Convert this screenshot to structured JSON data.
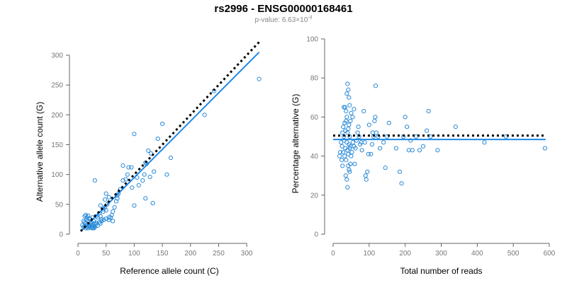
{
  "title": "rs2996 - ENSG00000168461",
  "subtitle": {
    "prefix": "p-value: 6.63×10",
    "exponent": "-4"
  },
  "colors": {
    "points": "#2a8ad8",
    "fit_line": "#1e88e5",
    "reference_line": "#000000",
    "axis": "#666666"
  },
  "chart_data": [
    {
      "type": "scatter",
      "xlabel": "Reference allele count (C)",
      "ylabel": "Alternative allele count (G)",
      "xlim": [
        0,
        325
      ],
      "ylim": [
        0,
        300
      ],
      "x_ticks": [
        0,
        50,
        100,
        150,
        200,
        250,
        300
      ],
      "y_ticks": [
        0,
        50,
        100,
        150,
        200,
        250,
        300
      ],
      "lines": [
        {
          "name": "fit",
          "style": "solid",
          "x": [
            5,
            322
          ],
          "y": [
            5,
            305
          ]
        },
        {
          "name": "expected",
          "style": "dotted",
          "x": [
            5,
            322
          ],
          "y": [
            5,
            322
          ]
        }
      ],
      "points": [
        [
          12,
          30
        ],
        [
          14,
          32
        ],
        [
          16,
          28
        ],
        [
          18,
          31
        ],
        [
          20,
          26
        ],
        [
          10,
          22
        ],
        [
          12,
          20
        ],
        [
          14,
          18
        ],
        [
          15,
          24
        ],
        [
          16,
          16
        ],
        [
          18,
          22
        ],
        [
          20,
          14
        ],
        [
          22,
          18
        ],
        [
          22,
          25
        ],
        [
          24,
          20
        ],
        [
          25,
          12
        ],
        [
          26,
          28
        ],
        [
          27,
          16
        ],
        [
          28,
          22
        ],
        [
          30,
          18
        ],
        [
          8,
          15
        ],
        [
          10,
          12
        ],
        [
          12,
          14
        ],
        [
          14,
          10
        ],
        [
          16,
          12
        ],
        [
          18,
          10
        ],
        [
          20,
          13
        ],
        [
          22,
          11
        ],
        [
          24,
          15
        ],
        [
          26,
          10
        ],
        [
          28,
          13
        ],
        [
          30,
          12
        ],
        [
          32,
          16
        ],
        [
          33,
          19
        ],
        [
          35,
          14
        ],
        [
          28,
          10
        ],
        [
          32,
          30
        ],
        [
          35,
          28
        ],
        [
          38,
          35
        ],
        [
          40,
          30
        ],
        [
          42,
          25
        ],
        [
          45,
          38
        ],
        [
          48,
          45
        ],
        [
          50,
          40
        ],
        [
          52,
          50
        ],
        [
          55,
          62
        ],
        [
          50,
          68
        ],
        [
          48,
          58
        ],
        [
          45,
          42
        ],
        [
          38,
          20
        ],
        [
          40,
          18
        ],
        [
          42,
          22
        ],
        [
          46,
          24
        ],
        [
          50,
          26
        ],
        [
          55,
          24
        ],
        [
          58,
          28
        ],
        [
          60,
          32
        ],
        [
          62,
          38
        ],
        [
          65,
          45
        ],
        [
          68,
          55
        ],
        [
          70,
          60
        ],
        [
          72,
          68
        ],
        [
          75,
          75
        ],
        [
          80,
          90
        ],
        [
          85,
          92
        ],
        [
          88,
          100
        ],
        [
          90,
          112
        ],
        [
          95,
          112
        ],
        [
          100,
          168
        ],
        [
          105,
          95
        ],
        [
          108,
          82
        ],
        [
          115,
          90
        ],
        [
          118,
          100
        ],
        [
          120,
          120
        ],
        [
          122,
          118
        ],
        [
          125,
          140
        ],
        [
          128,
          96
        ],
        [
          130,
          135
        ],
        [
          133,
          52
        ],
        [
          135,
          105
        ],
        [
          142,
          160
        ],
        [
          150,
          185
        ],
        [
          158,
          100
        ],
        [
          165,
          128
        ],
        [
          225,
          200
        ],
        [
          242,
          240
        ],
        [
          322,
          260
        ],
        [
          30,
          90
        ],
        [
          40,
          48
        ],
        [
          55,
          28
        ],
        [
          62,
          22
        ],
        [
          70,
          65
        ],
        [
          80,
          115
        ],
        [
          96,
          78
        ],
        [
          100,
          48
        ],
        [
          120,
          60
        ]
      ]
    },
    {
      "type": "scatter",
      "xlabel": "Total number of reads",
      "ylabel": "Percentage alternative (G)",
      "xlim": [
        0,
        600
      ],
      "ylim": [
        0,
        100
      ],
      "x_ticks": [
        0,
        100,
        200,
        300,
        400,
        500,
        600
      ],
      "y_ticks": [
        0,
        20,
        40,
        60,
        80,
        100
      ],
      "lines": [
        {
          "name": "fit",
          "style": "solid",
          "x": [
            0,
            590
          ],
          "y": [
            48.5,
            48.5
          ]
        },
        {
          "name": "expected",
          "style": "dotted",
          "x": [
            0,
            590
          ],
          "y": [
            50.5,
            50.5
          ]
        }
      ],
      "points": [
        [
          25,
          45
        ],
        [
          28,
          42
        ],
        [
          30,
          48
        ],
        [
          32,
          40
        ],
        [
          34,
          44
        ],
        [
          36,
          38
        ],
        [
          38,
          47
        ],
        [
          40,
          43
        ],
        [
          42,
          41
        ],
        [
          44,
          46
        ],
        [
          46,
          44
        ],
        [
          48,
          45
        ],
        [
          26,
          52
        ],
        [
          28,
          55
        ],
        [
          30,
          50
        ],
        [
          32,
          57
        ],
        [
          34,
          53
        ],
        [
          36,
          58
        ],
        [
          38,
          60
        ],
        [
          40,
          52
        ],
        [
          42,
          54
        ],
        [
          44,
          56
        ],
        [
          46,
          50
        ],
        [
          48,
          58
        ],
        [
          30,
          65
        ],
        [
          33,
          65
        ],
        [
          36,
          63
        ],
        [
          38,
          72
        ],
        [
          40,
          77
        ],
        [
          42,
          74
        ],
        [
          44,
          70
        ],
        [
          46,
          66
        ],
        [
          50,
          62
        ],
        [
          54,
          60
        ],
        [
          58,
          64
        ],
        [
          35,
          30
        ],
        [
          38,
          28
        ],
        [
          40,
          24
        ],
        [
          42,
          35
        ],
        [
          44,
          33
        ],
        [
          46,
          32
        ],
        [
          48,
          36
        ],
        [
          50,
          40
        ],
        [
          52,
          42
        ],
        [
          55,
          47
        ],
        [
          58,
          45
        ],
        [
          60,
          36
        ],
        [
          62,
          44
        ],
        [
          65,
          48
        ],
        [
          68,
          52
        ],
        [
          70,
          55
        ],
        [
          72,
          50
        ],
        [
          75,
          46
        ],
        [
          78,
          47
        ],
        [
          80,
          43
        ],
        [
          85,
          63
        ],
        [
          88,
          47
        ],
        [
          90,
          30
        ],
        [
          92,
          28
        ],
        [
          95,
          32
        ],
        [
          98,
          41
        ],
        [
          100,
          56
        ],
        [
          105,
          41
        ],
        [
          108,
          46
        ],
        [
          110,
          52
        ],
        [
          112,
          50
        ],
        [
          115,
          58
        ],
        [
          117,
          60
        ],
        [
          118,
          76
        ],
        [
          120,
          52
        ],
        [
          125,
          50
        ],
        [
          130,
          44
        ],
        [
          140,
          47
        ],
        [
          145,
          34
        ],
        [
          150,
          50
        ],
        [
          155,
          57
        ],
        [
          175,
          44
        ],
        [
          185,
          32
        ],
        [
          190,
          26
        ],
        [
          195,
          50
        ],
        [
          200,
          60
        ],
        [
          205,
          55
        ],
        [
          210,
          43
        ],
        [
          215,
          48
        ],
        [
          220,
          43
        ],
        [
          230,
          50
        ],
        [
          240,
          43
        ],
        [
          250,
          45
        ],
        [
          260,
          53
        ],
        [
          265,
          63
        ],
        [
          270,
          50
        ],
        [
          290,
          43
        ],
        [
          340,
          55
        ],
        [
          420,
          47
        ],
        [
          480,
          50
        ],
        [
          588,
          44
        ],
        [
          20,
          42
        ],
        [
          22,
          47
        ],
        [
          24,
          38
        ],
        [
          26,
          35
        ],
        [
          18,
          40
        ]
      ]
    }
  ]
}
